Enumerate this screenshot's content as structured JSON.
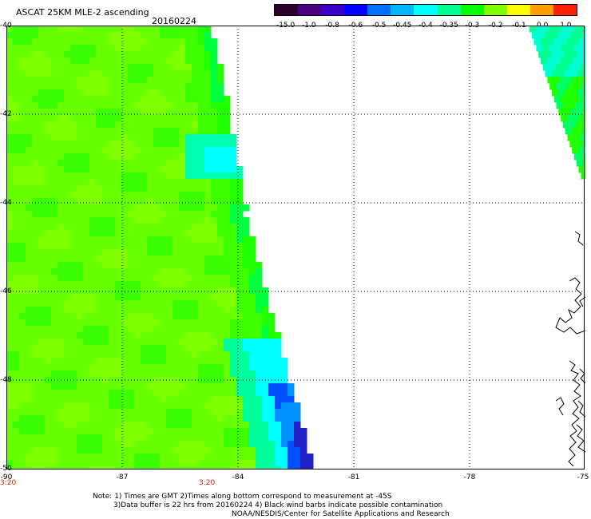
{
  "header": {
    "title": "ASCAT 25KM MLE-2 ascending",
    "date": "20160224"
  },
  "colorbar": {
    "labels": [
      "-15.0",
      "-1.0",
      "-0.8",
      "-0.6",
      "-0.5",
      "-0.45",
      "-0.4",
      "-0.35",
      "-0.3",
      "-0.2",
      "-0.1",
      "0.0",
      "1.0"
    ],
    "colors": [
      "#2a002a",
      "#4b0082",
      "#3a00c8",
      "#0000ff",
      "#0070ff",
      "#00b4ff",
      "#00ffff",
      "#00ff90",
      "#00ff00",
      "#7fff00",
      "#ffff00",
      "#ffa000",
      "#ff2000"
    ]
  },
  "axes": {
    "lat_labels": [
      "-40",
      "-42",
      "-44",
      "-46",
      "-48",
      "-50"
    ],
    "lon_labels": [
      "-90",
      "-87",
      "-84",
      "-81",
      "-78",
      "-75"
    ],
    "time_labels": [
      "3:20",
      "3:20"
    ]
  },
  "notes": {
    "line1": "Note: 1) Times are GMT 2)Times along bottom correspond to measurement at -45S",
    "line2": "3)Data buffer is 22 hrs from 20160224 4) Black wind barbs indicate possible contamination",
    "line3": "NOAA/NESDIS/Center for Satellite Applications and Research"
  }
}
